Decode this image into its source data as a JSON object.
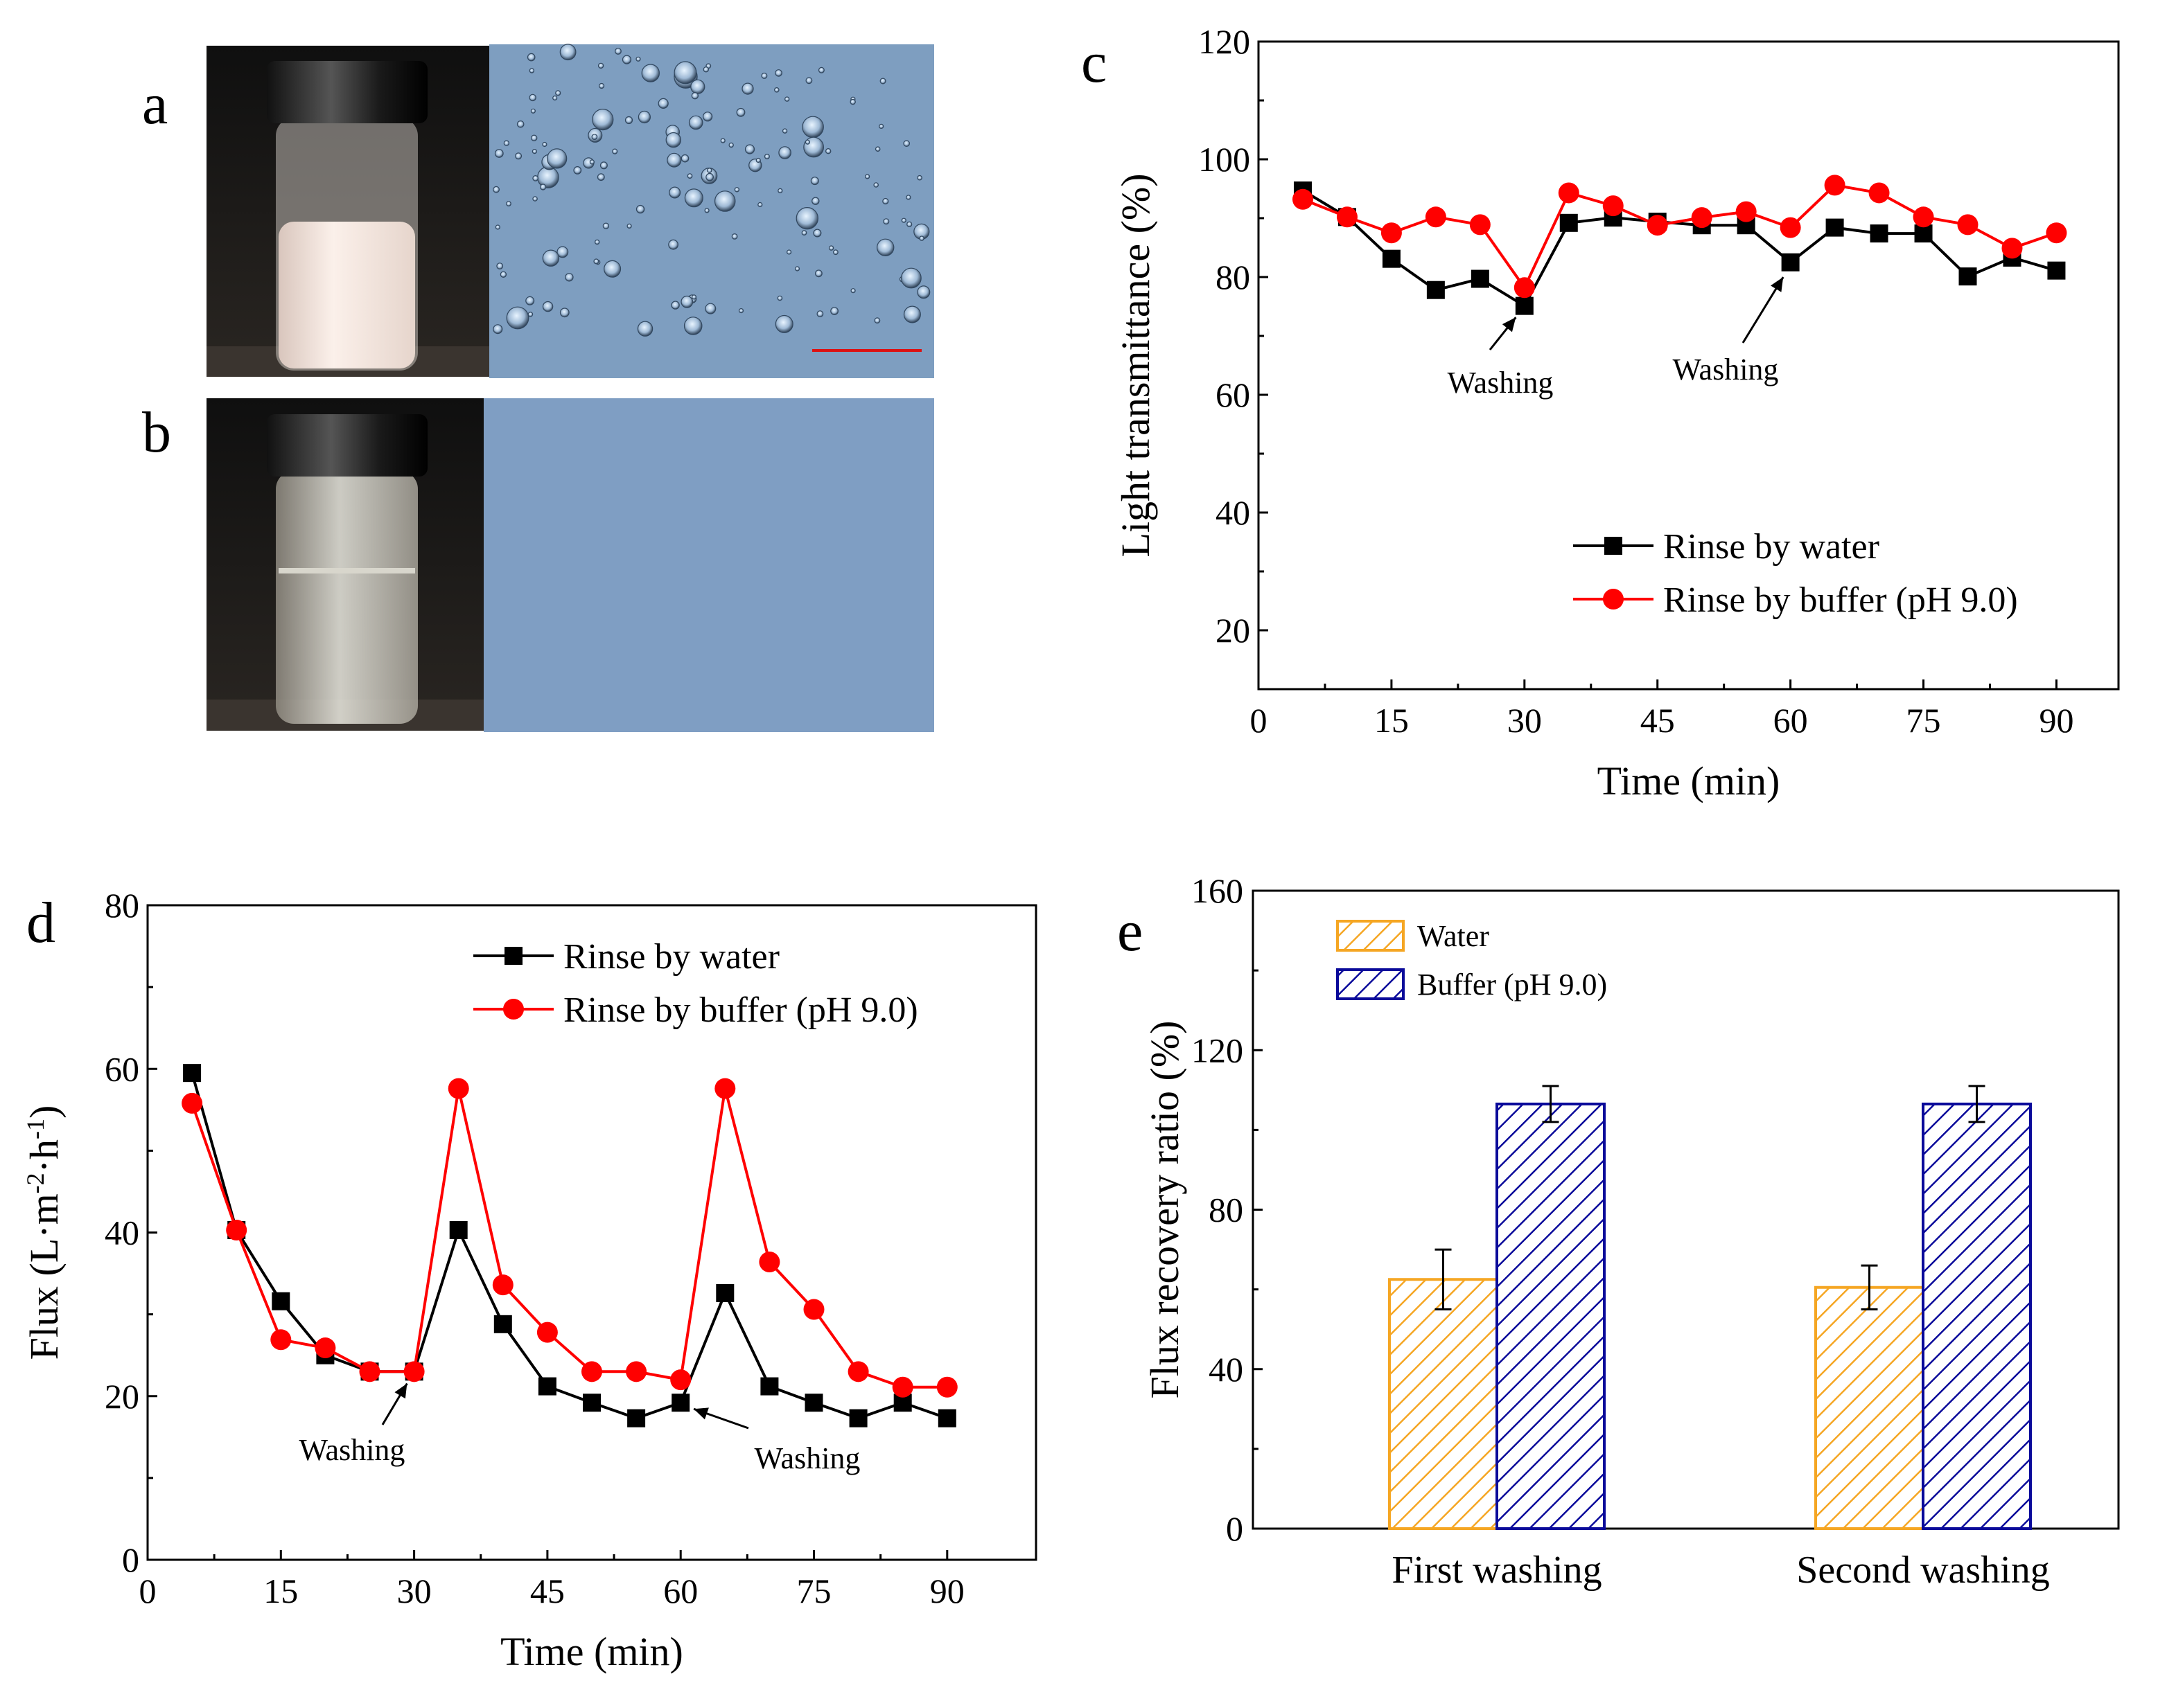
{
  "panels": {
    "a": {
      "letter": "a"
    },
    "b": {
      "letter": "b"
    },
    "c": {
      "letter": "c"
    },
    "d": {
      "letter": "d"
    },
    "e": {
      "letter": "e"
    }
  },
  "colors": {
    "water": "#000000",
    "buffer": "#ff0000",
    "bar_water": "#f5a623",
    "bar_buffer": "#0a0a9a",
    "micro_bg": "#7e9ec0",
    "micro_bg_clear": "#7f9ec3"
  },
  "chart_data": [
    {
      "id": "c",
      "type": "line",
      "xlabel": "Time (min)",
      "ylabel": "Light transmittance (%)",
      "xlim": [
        0,
        97
      ],
      "ylim": [
        10,
        120
      ],
      "xticks": [
        0,
        15,
        30,
        45,
        60,
        75,
        90
      ],
      "yticks": [
        20,
        40,
        60,
        80,
        100,
        120
      ],
      "x": [
        5,
        10,
        15,
        20,
        25,
        30,
        35,
        40,
        45,
        50,
        55,
        60,
        65,
        70,
        75,
        80,
        85,
        90
      ],
      "series": [
        {
          "name": "Rinse by water",
          "marker": "square",
          "color": "#000000",
          "values": [
            94.7,
            90.2,
            83.1,
            77.8,
            79.7,
            75.1,
            89.2,
            90.1,
            89.4,
            88.8,
            88.8,
            82.5,
            88.4,
            87.4,
            87.4,
            80.1,
            83.3,
            81.1
          ]
        },
        {
          "name": "Rinse by buffer (pH 9.0)",
          "marker": "circle",
          "color": "#ff0000",
          "values": [
            93.2,
            90.2,
            87.5,
            90.2,
            88.9,
            78.2,
            94.3,
            92.1,
            88.8,
            90.1,
            91.1,
            88.4,
            95.6,
            94.3,
            90.2,
            88.9,
            84.9,
            87.5
          ]
        }
      ],
      "annotations": [
        {
          "text": "Washing",
          "x": 30,
          "y": 75
        },
        {
          "text": "Washing",
          "x": 60,
          "y": 82
        }
      ]
    },
    {
      "id": "d",
      "type": "line",
      "xlabel": "Time (min)",
      "ylabel": "Flux (L·m-2·h-1)",
      "ylabel_parts": [
        "Flux (L·m",
        "-2",
        "·h",
        "-1",
        ")"
      ],
      "xlim": [
        0,
        100
      ],
      "ylim": [
        0,
        80
      ],
      "xticks": [
        0,
        15,
        30,
        45,
        60,
        75,
        90
      ],
      "yticks": [
        0,
        20,
        40,
        60,
        80
      ],
      "x": [
        5,
        10,
        15,
        20,
        25,
        30,
        35,
        40,
        45,
        50,
        55,
        60,
        65,
        70,
        75,
        80,
        85,
        90
      ],
      "series": [
        {
          "name": "Rinse by water",
          "marker": "square",
          "color": "#000000",
          "values": [
            59.5,
            40.3,
            31.6,
            25.0,
            23.0,
            23.0,
            40.3,
            28.8,
            21.2,
            19.2,
            17.3,
            19.2,
            32.6,
            21.2,
            19.2,
            17.3,
            19.2,
            17.3
          ]
        },
        {
          "name": "Rinse by buffer (pH 9.0)",
          "marker": "circle",
          "color": "#ff0000",
          "values": [
            55.8,
            40.3,
            26.9,
            25.9,
            23.0,
            23.0,
            57.6,
            33.6,
            27.8,
            23.0,
            23.0,
            22.0,
            57.6,
            36.4,
            30.6,
            23.0,
            21.1,
            21.1
          ]
        }
      ],
      "annotations": [
        {
          "text": "Washing",
          "x": 30,
          "y": 23
        },
        {
          "text": "Washing",
          "x": 60,
          "y": 19
        }
      ]
    },
    {
      "id": "e",
      "type": "bar",
      "xlabel": "",
      "ylabel": "Flux recovery ratio (%)",
      "ylim": [
        0,
        160
      ],
      "yticks": [
        0,
        40,
        80,
        120,
        160
      ],
      "categories": [
        "First washing",
        "Second washing"
      ],
      "series": [
        {
          "name": "Water",
          "color": "#f5a623",
          "values": [
            62.5,
            60.5
          ],
          "errors": [
            7.5,
            5.5
          ]
        },
        {
          "name": "Buffer (pH 9.0)",
          "color": "#0a0a9a",
          "values": [
            106.5,
            106.5
          ],
          "errors": [
            4.5,
            4.5
          ]
        }
      ]
    }
  ]
}
